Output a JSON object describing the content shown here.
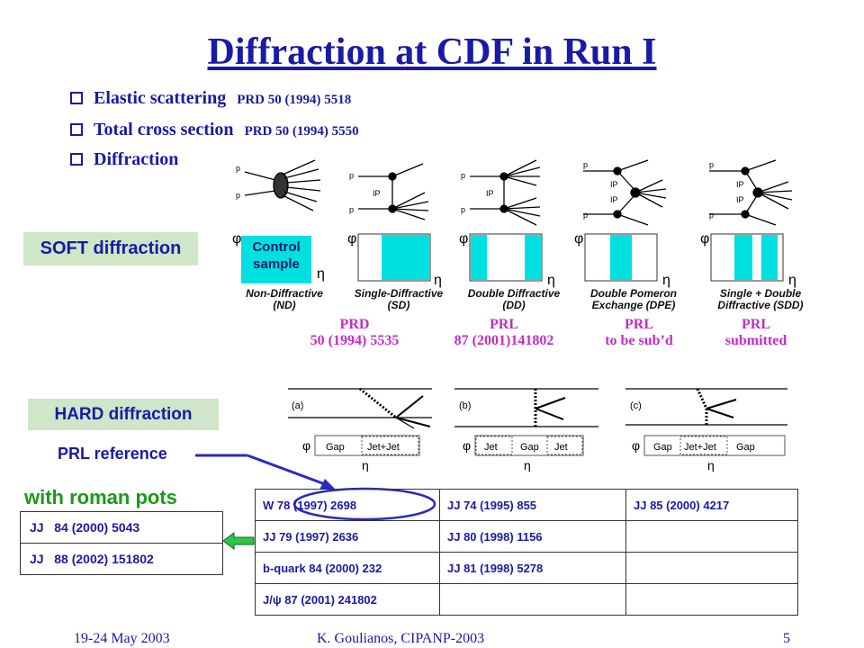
{
  "title": "Diffraction at CDF in Run I",
  "bullets": [
    {
      "text": "Elastic scattering",
      "ref": "PRD 50 (1994) 5518"
    },
    {
      "text": "Total cross section",
      "ref": "PRD 50 (1994) 5550"
    },
    {
      "text": "Diffraction",
      "ref": ""
    }
  ],
  "soft_label": "SOFT diffraction",
  "hard_label": "HARD diffraction",
  "control_sample": {
    "line1": "Control",
    "line2": "sample"
  },
  "soft_diagrams": [
    {
      "label1": "Non-Diffractive",
      "label2": "(ND)"
    },
    {
      "label1": "Single-Diffractive",
      "label2": "(SD)"
    },
    {
      "label1": "Double Diffractive",
      "label2": "(DD)"
    },
    {
      "label1": "Double Pomeron",
      "label2": "Exchange (DPE)"
    },
    {
      "label1": "Single + Double",
      "label2": "Diffractive (SDD)"
    }
  ],
  "diagram_symbols": {
    "p": "p",
    "pbar": "p",
    "ip": "IP",
    "phi": "φ",
    "eta": "η"
  },
  "soft_refs": [
    {
      "line1": "PRD",
      "line2": "50 (1994) 5535"
    },
    {
      "line1": "PRL",
      "line2": "87 (2001)141802"
    },
    {
      "line1": "PRL",
      "line2": "to be sub’d"
    },
    {
      "line1": "PRL",
      "line2": "submitted"
    }
  ],
  "hard_diagrams": [
    {
      "tag": "(a)",
      "bins": [
        "Gap",
        "Jet+Jet"
      ]
    },
    {
      "tag": "(b)",
      "bins": [
        "Jet",
        "Gap",
        "Jet"
      ]
    },
    {
      "tag": "(c)",
      "bins": [
        "Gap",
        "Jet+Jet",
        "Gap"
      ]
    }
  ],
  "prl_reference": "PRL reference",
  "with_roman_pots": "with roman pots",
  "roman_pots_table": [
    [
      "JJ",
      "84 (2000) 5043"
    ],
    [
      "JJ",
      "88 (2002) 151802"
    ]
  ],
  "main_table": [
    [
      "W      78 (1997) 2698",
      "JJ    74 (1995) 855",
      "JJ      85 (2000) 4217"
    ],
    [
      "JJ        79 (1997) 2636",
      "JJ    80 (1998) 1156",
      ""
    ],
    [
      "b-quark  84 (2000) 232",
      "JJ    81 (1998) 5278",
      ""
    ],
    [
      "J/ψ    87 (2001) 241802",
      "",
      ""
    ]
  ],
  "footer": {
    "date": "19-24 May 2003",
    "author": "K. Goulianos, CIPANP-2003",
    "page": "5"
  },
  "colors": {
    "title": "#1a1aa6",
    "cyan": "#00e0e0",
    "magenta": "#c42dc8",
    "green": "#1a9a1a",
    "label_bg": "#cfe6c8"
  }
}
